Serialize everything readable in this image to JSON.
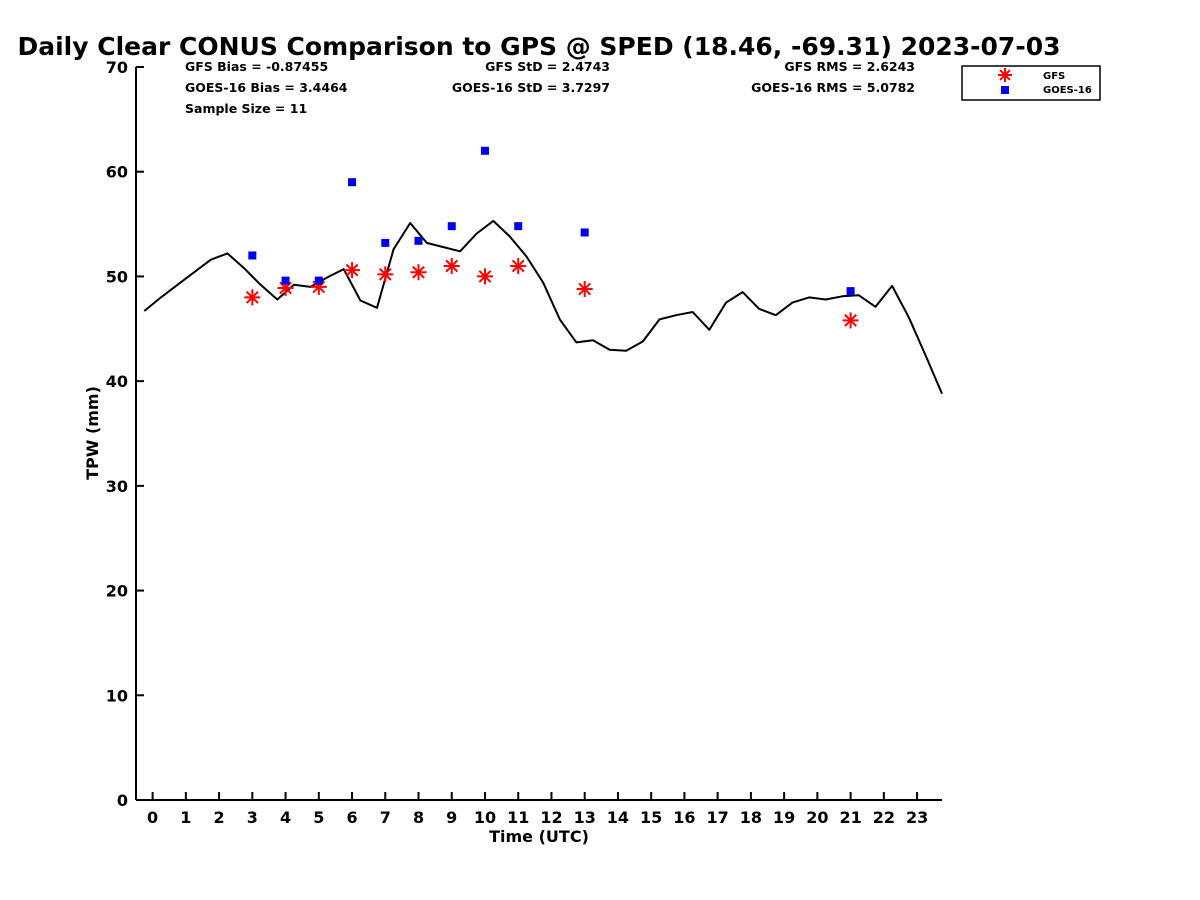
{
  "chart_data": {
    "type": "scatter",
    "title": "Daily Clear CONUS Comparison to GPS @ SPED (18.46, -69.31) 2023-07-03",
    "xlabel": "Time (UTC)",
    "ylabel": "TPW (mm)",
    "xlim": [
      -0.5,
      23.75
    ],
    "ylim": [
      0,
      70
    ],
    "xticks": [
      0,
      1,
      2,
      3,
      4,
      5,
      6,
      7,
      8,
      9,
      10,
      11,
      12,
      13,
      14,
      15,
      16,
      17,
      18,
      19,
      20,
      21,
      22,
      23
    ],
    "yticks": [
      0,
      10,
      20,
      30,
      40,
      50,
      60,
      70
    ],
    "grid": false,
    "legend_position": "top-right",
    "stats": {
      "gfs_bias": "GFS Bias = -0.87455",
      "goes_bias": "GOES-16 Bias = 3.4464",
      "sample_size": "Sample Size = 11",
      "gfs_std": "GFS StD = 2.4743",
      "goes_std": "GOES-16 StD = 3.7297",
      "gfs_rms": "GFS RMS = 2.6243",
      "goes_rms": "GOES-16 RMS = 5.0782"
    },
    "series": [
      {
        "kind": "line",
        "color": "#000000",
        "x": [
          -0.25,
          0.25,
          0.75,
          1.25,
          1.75,
          2.25,
          2.75,
          3.25,
          3.75,
          4.25,
          4.75,
          5.25,
          5.75,
          6.25,
          6.75,
          7.25,
          7.75,
          8.25,
          8.75,
          9.25,
          9.75,
          10.25,
          10.75,
          11.25,
          11.75,
          12.25,
          12.75,
          13.25,
          13.75,
          14.25,
          14.75,
          15.25,
          15.75,
          16.25,
          16.75,
          17.25,
          17.75,
          18.25,
          18.75,
          19.25,
          19.75,
          20.25,
          20.75,
          21.25,
          21.75,
          22.25,
          22.75,
          23.25,
          23.75
        ],
        "y": [
          46.7,
          48.0,
          49.2,
          50.4,
          51.6,
          52.2,
          50.8,
          49.2,
          47.8,
          49.2,
          49.0,
          49.9,
          50.7,
          47.7,
          47.0,
          52.6,
          55.1,
          53.2,
          52.8,
          52.4,
          54.1,
          55.3,
          53.8,
          51.9,
          49.4,
          45.9,
          43.7,
          43.9,
          43.0,
          42.9,
          43.8,
          45.9,
          46.3,
          46.6,
          44.9,
          47.5,
          48.5,
          46.9,
          46.3,
          47.5,
          48.0,
          47.8,
          48.1,
          48.2,
          47.1,
          49.1,
          46.1,
          42.5,
          38.8
        ]
      },
      {
        "name": "GFS",
        "kind": "scatter",
        "marker": "asterisk",
        "color": "#ff0000",
        "x": [
          3,
          4,
          5,
          6,
          7,
          8,
          9,
          10,
          11,
          13,
          21
        ],
        "y": [
          48.0,
          48.9,
          49.0,
          50.6,
          50.2,
          50.4,
          51.0,
          50.0,
          51.0,
          48.8,
          45.8
        ]
      },
      {
        "name": "GOES-16",
        "kind": "scatter",
        "marker": "square",
        "color": "#0000ee",
        "x": [
          3,
          4,
          5,
          6,
          7,
          8,
          9,
          10,
          11,
          13,
          21
        ],
        "y": [
          52.0,
          49.6,
          49.6,
          59.0,
          53.2,
          53.4,
          54.8,
          62.0,
          54.8,
          54.2,
          48.6
        ]
      }
    ]
  }
}
